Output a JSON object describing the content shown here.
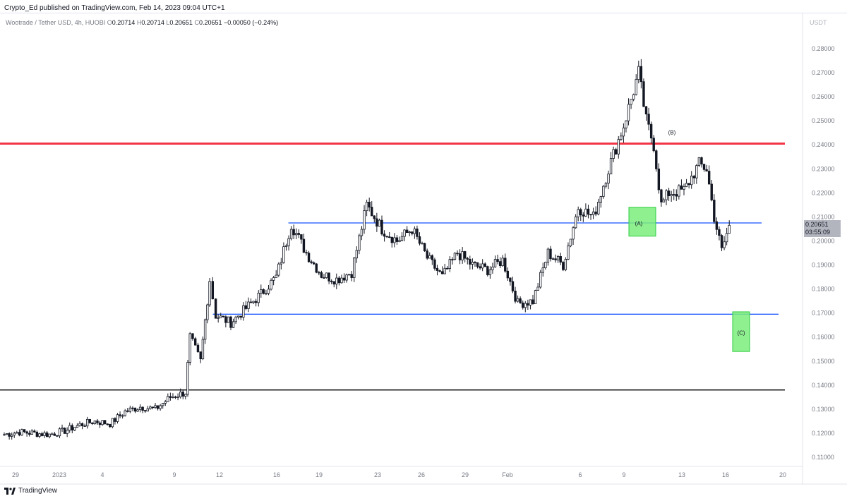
{
  "header": {
    "published": "Crypto_Ed published on TradingView.com, Feb 14, 2023 09:04 UTC+1"
  },
  "legend": {
    "symbol": "Wootrade / Tether USD, 4h, HUOBI",
    "o_label": "O",
    "o": "0.20714",
    "h_label": "H",
    "h": "0.20714",
    "l_label": "L",
    "l": "0.20651",
    "c_label": "C",
    "c": "0.20651",
    "change": "−0.00050 (−0.24%)"
  },
  "quote_unit": "USDT",
  "footer": {
    "brand": "TradingView"
  },
  "price_tag": {
    "price": "0.20651",
    "countdown": "03:55:09"
  },
  "colors": {
    "red_line": "#f23645",
    "blue_line": "#2962ff",
    "black_line": "#000000",
    "box_fill": "#7bed7b",
    "box_stroke": "#2ecc40",
    "candle": "#131722"
  },
  "chart_data": {
    "type": "candlestick",
    "x_ticks": [
      "29",
      "2023",
      "4",
      "9",
      "12",
      "16",
      "19",
      "23",
      "26",
      "29",
      "Feb",
      "6",
      "9",
      "13",
      "16",
      "20"
    ],
    "y_ticks": [
      "0.28000",
      "0.27000",
      "0.26000",
      "0.25000",
      "0.24000",
      "0.23000",
      "0.22000",
      "0.21000",
      "0.20000",
      "0.19000",
      "0.18000",
      "0.17000",
      "0.16000",
      "0.15000",
      "0.14000",
      "0.13000",
      "0.12000",
      "0.11000"
    ],
    "ylim": [
      0.105,
      0.285
    ],
    "series_path": [
      [
        "Dec 28",
        0.1195
      ],
      [
        "Dec 29",
        0.1205
      ],
      [
        "Dec 31",
        0.1195
      ],
      [
        "Jan 1",
        0.121
      ],
      [
        "Jan 2",
        0.1235
      ],
      [
        "Jan 3",
        0.125
      ],
      [
        "Jan 4",
        0.124
      ],
      [
        "Jan 5",
        0.129
      ],
      [
        "Jan 6",
        0.131
      ],
      [
        "Jan 7",
        0.13
      ],
      [
        "Jan 8",
        0.135
      ],
      [
        "Jan 9",
        0.137
      ],
      [
        "Jan 9.3",
        0.16
      ],
      [
        "Jan 10",
        0.15
      ],
      [
        "Jan 10.6",
        0.184
      ],
      [
        "Jan 11",
        0.169
      ],
      [
        "Jan 12",
        0.166
      ],
      [
        "Jan 13",
        0.172
      ],
      [
        "Jan 14",
        0.178
      ],
      [
        "Jan 15",
        0.185
      ],
      [
        "Jan 16",
        0.207
      ],
      [
        "Jan 17",
        0.195
      ],
      [
        "Jan 18",
        0.186
      ],
      [
        "Jan 19",
        0.184
      ],
      [
        "Jan 20",
        0.187
      ],
      [
        "Jan 21",
        0.215
      ],
      [
        "Jan 22",
        0.205
      ],
      [
        "Jan 23",
        0.2
      ],
      [
        "Jan 24",
        0.205
      ],
      [
        "Jan 25",
        0.193
      ],
      [
        "Jan 26",
        0.185
      ],
      [
        "Jan 27",
        0.195
      ],
      [
        "Jan 28",
        0.19
      ],
      [
        "Jan 29",
        0.188
      ],
      [
        "Jan 30",
        0.192
      ],
      [
        "Jan 31",
        0.174
      ],
      [
        "Feb 1",
        0.175
      ],
      [
        "Feb 2",
        0.195
      ],
      [
        "Feb 3",
        0.19
      ],
      [
        "Feb 4",
        0.214
      ],
      [
        "Feb 5",
        0.21
      ],
      [
        "Feb 6",
        0.23
      ],
      [
        "Feb 7",
        0.248
      ],
      [
        "Feb 8",
        0.27
      ],
      [
        "Feb 8.5",
        0.25
      ],
      [
        "Feb 9",
        0.24
      ],
      [
        "Feb 9.5",
        0.215
      ],
      [
        "Feb 10",
        0.22
      ],
      [
        "Feb 11",
        0.221
      ],
      [
        "Feb 12",
        0.232
      ],
      [
        "Feb 12.5",
        0.23
      ],
      [
        "Feb 13",
        0.21
      ],
      [
        "Feb 13.5",
        0.196
      ],
      [
        "Feb 14",
        0.2065
      ]
    ],
    "horizontal_lines": [
      {
        "price": 0.2405,
        "color": "red",
        "label": ""
      },
      {
        "price": 0.2075,
        "color": "blue",
        "from": "Jan 16",
        "label": ""
      },
      {
        "price": 0.1695,
        "color": "blue",
        "from": "Jan 11",
        "label": ""
      },
      {
        "price": 0.138,
        "color": "black",
        "label": ""
      }
    ],
    "annotations": [
      {
        "text": "(A)",
        "box_top": 0.214,
        "box_bottom": 0.202
      },
      {
        "text": "(B)",
        "price": 0.237
      },
      {
        "text": "(C)",
        "box_top": 0.1705,
        "box_bottom": 0.154
      }
    ]
  }
}
